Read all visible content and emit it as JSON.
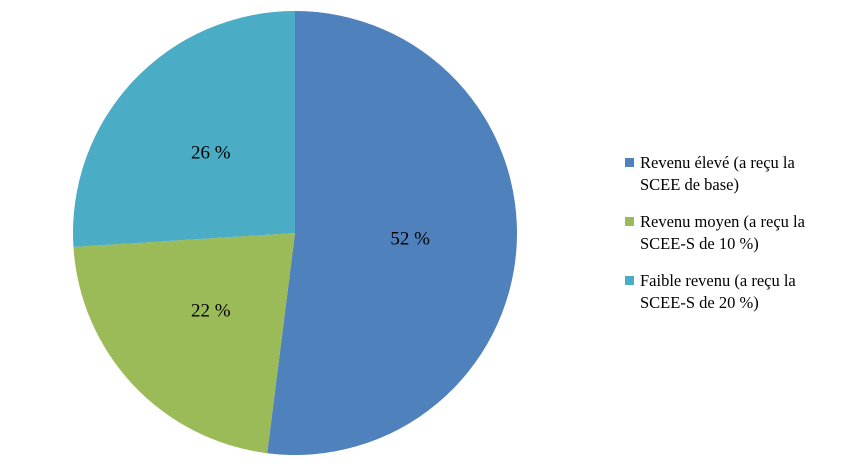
{
  "chart_data": {
    "type": "pie",
    "categories": [
      "Revenu élevé (a reçu la SCEE de base)",
      "Revenu moyen (a reçu la SCEE-S de 10 %)",
      "Faible revenu (a reçu la SCEE-S de 20 %)"
    ],
    "values": [
      52,
      22,
      26
    ],
    "value_labels": [
      "52 %",
      "22 %",
      "26 %"
    ],
    "colors": [
      "#4f81bd",
      "#9bbb59",
      "#4bacc6"
    ],
    "legend": "right"
  }
}
